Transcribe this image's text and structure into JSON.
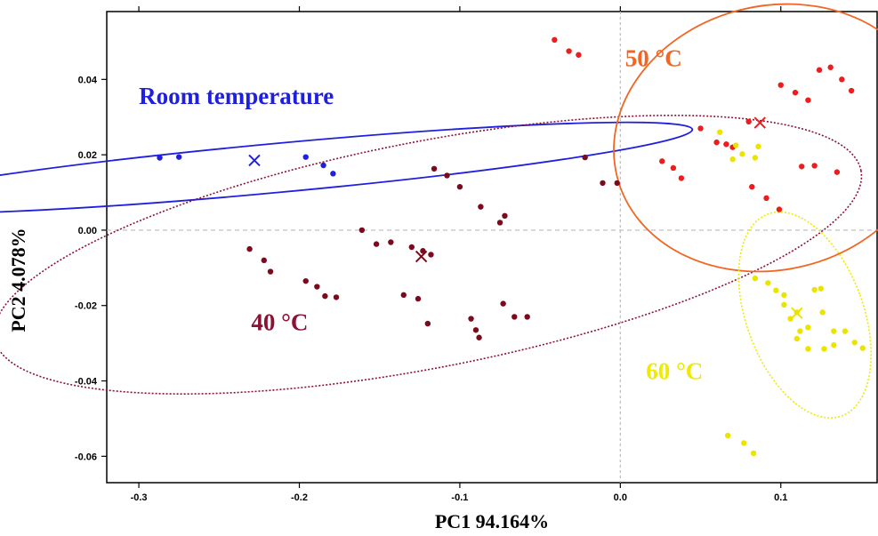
{
  "chart_data": {
    "type": "scatter",
    "xlabel": "PC1 94.164%",
    "ylabel": "PC2 4.078%",
    "xlim": [
      -0.32,
      0.16
    ],
    "ylim": [
      -0.067,
      0.058
    ],
    "x_ticks": [
      -0.3,
      -0.2,
      -0.1,
      0.0,
      0.1
    ],
    "x_tick_labels": [
      "-0.3",
      "-0.2",
      "-0.1",
      "0.0",
      "0.1"
    ],
    "y_ticks": [
      -0.06,
      -0.04,
      -0.02,
      0.0,
      0.02,
      0.04
    ],
    "y_tick_labels": [
      "-0.06",
      "-0.04",
      "-0.02",
      "0.00",
      "0.02",
      "0.04"
    ],
    "reference_lines": {
      "x": 0,
      "y": 0,
      "style": "dotted",
      "color": "#bbbbbb"
    },
    "groups": [
      {
        "name": "Room temperature",
        "label_position": [
          -0.3,
          0.0335
        ],
        "color": "#1f1fe0",
        "point_color": "#1f1fe0",
        "ellipse_style": "solid",
        "ellipse": {
          "cx": -0.214,
          "cy": 0.0165,
          "rx": 0.26,
          "ry": 0.0065,
          "angle_deg": -5.3
        },
        "centroid": [
          -0.228,
          0.0185
        ],
        "points": [
          [
            -0.287,
            0.0192
          ],
          [
            -0.275,
            0.0194
          ],
          [
            -0.196,
            0.0194
          ],
          [
            -0.185,
            0.0172
          ],
          [
            -0.179,
            0.015
          ]
        ]
      },
      {
        "name": "40 °C",
        "label_position": [
          -0.23,
          -0.0265
        ],
        "color": "#8b1235",
        "point_color": "#7a0a1c",
        "ellipse_style": "dotted",
        "ellipse": {
          "cx": -0.12,
          "cy": -0.0065,
          "rx": 0.275,
          "ry": 0.03,
          "angle_deg": -11
        },
        "centroid": [
          -0.124,
          -0.007
        ],
        "points": [
          [
            -0.231,
            -0.005
          ],
          [
            -0.222,
            -0.008
          ],
          [
            -0.218,
            -0.011
          ],
          [
            -0.196,
            -0.0135
          ],
          [
            -0.189,
            -0.015
          ],
          [
            -0.184,
            -0.0175
          ],
          [
            -0.177,
            -0.0178
          ],
          [
            -0.161,
            0.0
          ],
          [
            -0.152,
            -0.0037
          ],
          [
            -0.143,
            -0.0032
          ],
          [
            -0.135,
            -0.0172
          ],
          [
            -0.13,
            -0.0045
          ],
          [
            -0.126,
            -0.0182
          ],
          [
            -0.123,
            -0.0055
          ],
          [
            -0.118,
            -0.0065
          ],
          [
            -0.12,
            -0.0248
          ],
          [
            -0.116,
            0.0163
          ],
          [
            -0.108,
            0.0145
          ],
          [
            -0.1,
            0.0115
          ],
          [
            -0.093,
            -0.0235
          ],
          [
            -0.09,
            -0.0265
          ],
          [
            -0.088,
            -0.0285
          ],
          [
            -0.087,
            0.0062
          ],
          [
            -0.075,
            0.002
          ],
          [
            -0.072,
            0.0038
          ],
          [
            -0.073,
            -0.0195
          ],
          [
            -0.066,
            -0.023
          ],
          [
            -0.058,
            -0.023
          ],
          [
            -0.022,
            0.0193
          ],
          [
            -0.011,
            0.0125
          ],
          [
            -0.002,
            0.0125
          ]
        ]
      },
      {
        "name": "50 °C",
        "label_position": [
          0.003,
          0.0435
        ],
        "color": "#f26522",
        "point_color": "#ee1c1c",
        "ellipse_style": "solid",
        "ellipse": {
          "cx": 0.095,
          "cy": 0.0245,
          "rx": 0.1,
          "ry": 0.035,
          "angle_deg": -14
        },
        "centroid": [
          0.087,
          0.0285
        ],
        "points": [
          [
            -0.041,
            0.0505
          ],
          [
            -0.032,
            0.0475
          ],
          [
            -0.026,
            0.0465
          ],
          [
            0.026,
            0.0183
          ],
          [
            0.033,
            0.0165
          ],
          [
            0.038,
            0.0138
          ],
          [
            0.05,
            0.027
          ],
          [
            0.06,
            0.0233
          ],
          [
            0.066,
            0.0228
          ],
          [
            0.07,
            0.022
          ],
          [
            0.08,
            0.0288
          ],
          [
            0.082,
            0.0115
          ],
          [
            0.091,
            0.0085
          ],
          [
            0.1,
            0.0385
          ],
          [
            0.099,
            0.0055
          ],
          [
            0.109,
            0.0365
          ],
          [
            0.117,
            0.0345
          ],
          [
            0.113,
            0.0169
          ],
          [
            0.121,
            0.0171
          ],
          [
            0.124,
            0.0425
          ],
          [
            0.131,
            0.0432
          ],
          [
            0.135,
            0.0154
          ],
          [
            0.138,
            0.04
          ],
          [
            0.144,
            0.037
          ]
        ]
      },
      {
        "name": "60 °C",
        "label_position": [
          0.016,
          -0.0395
        ],
        "color": "#f0ea00",
        "point_color": "#ece400",
        "ellipse_style": "dotted",
        "ellipse": {
          "cx": 0.115,
          "cy": -0.0225,
          "rx": 0.0365,
          "ry": 0.0285,
          "angle_deg": -20
        },
        "centroid": [
          0.11,
          -0.022
        ],
        "points": [
          [
            0.062,
            0.026
          ],
          [
            0.072,
            0.0225
          ],
          [
            0.084,
            0.0192
          ],
          [
            0.076,
            0.0202
          ],
          [
            0.086,
            0.0222
          ],
          [
            0.07,
            0.0188
          ],
          [
            0.084,
            -0.0128
          ],
          [
            0.092,
            -0.014
          ],
          [
            0.097,
            -0.016
          ],
          [
            0.102,
            -0.0172
          ],
          [
            0.102,
            -0.0198
          ],
          [
            0.106,
            -0.0235
          ],
          [
            0.11,
            -0.0218
          ],
          [
            0.112,
            -0.0268
          ],
          [
            0.117,
            -0.0258
          ],
          [
            0.121,
            -0.0158
          ],
          [
            0.125,
            -0.0155
          ],
          [
            0.126,
            -0.0218
          ],
          [
            0.11,
            -0.0288
          ],
          [
            0.117,
            -0.0315
          ],
          [
            0.127,
            -0.0315
          ],
          [
            0.133,
            -0.0305
          ],
          [
            0.133,
            -0.0268
          ],
          [
            0.14,
            -0.0268
          ],
          [
            0.146,
            -0.0298
          ],
          [
            0.151,
            -0.0313
          ],
          [
            0.067,
            -0.0545
          ],
          [
            0.077,
            -0.0565
          ],
          [
            0.083,
            -0.0592
          ]
        ]
      }
    ]
  }
}
